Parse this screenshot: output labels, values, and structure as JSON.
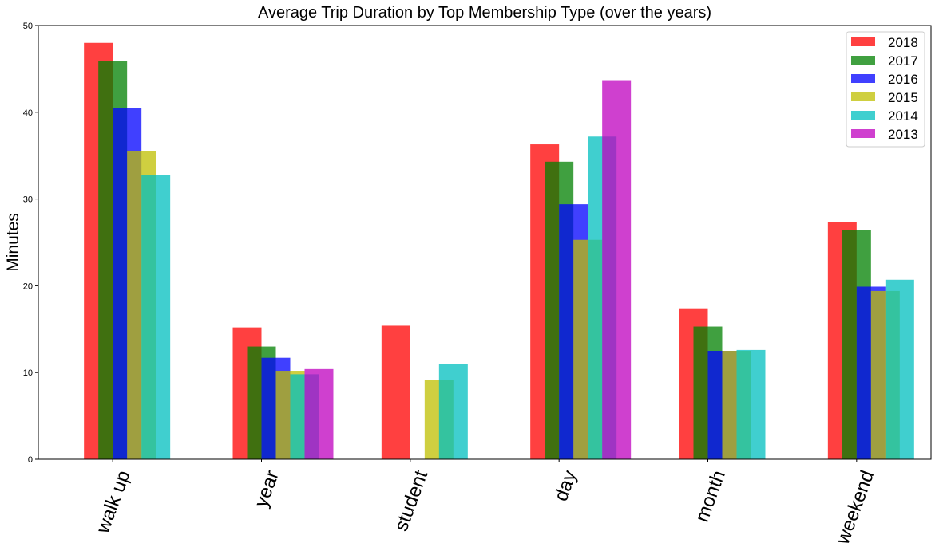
{
  "chart_data": {
    "type": "bar",
    "title": "Average Trip Duration by Top Membership Type (over the years)",
    "xlabel": "",
    "ylabel": "Minutes",
    "ylim": [
      0,
      50
    ],
    "yticks": [
      0,
      10,
      20,
      30,
      40,
      50
    ],
    "grid": false,
    "legend_position": "top-right",
    "categories": [
      "walk up",
      "year",
      "student",
      "day",
      "month",
      "weekend"
    ],
    "series": [
      {
        "name": "2018",
        "color": "#ff0000",
        "values": [
          48.0,
          15.2,
          15.4,
          36.3,
          17.4,
          27.3
        ]
      },
      {
        "name": "2017",
        "color": "#008000",
        "values": [
          45.9,
          13.0,
          null,
          34.3,
          15.3,
          26.4
        ]
      },
      {
        "name": "2016",
        "color": "#0000ff",
        "values": [
          40.5,
          11.7,
          null,
          29.4,
          12.5,
          19.9
        ]
      },
      {
        "name": "2015",
        "color": "#bfbf00",
        "values": [
          35.5,
          10.2,
          9.1,
          25.3,
          12.5,
          19.4
        ]
      },
      {
        "name": "2014",
        "color": "#00bfbf",
        "values": [
          32.8,
          9.8,
          11.0,
          37.2,
          12.6,
          20.7
        ]
      },
      {
        "name": "2013",
        "color": "#bf00bf",
        "values": [
          null,
          10.4,
          null,
          43.7,
          null,
          null
        ]
      }
    ]
  }
}
